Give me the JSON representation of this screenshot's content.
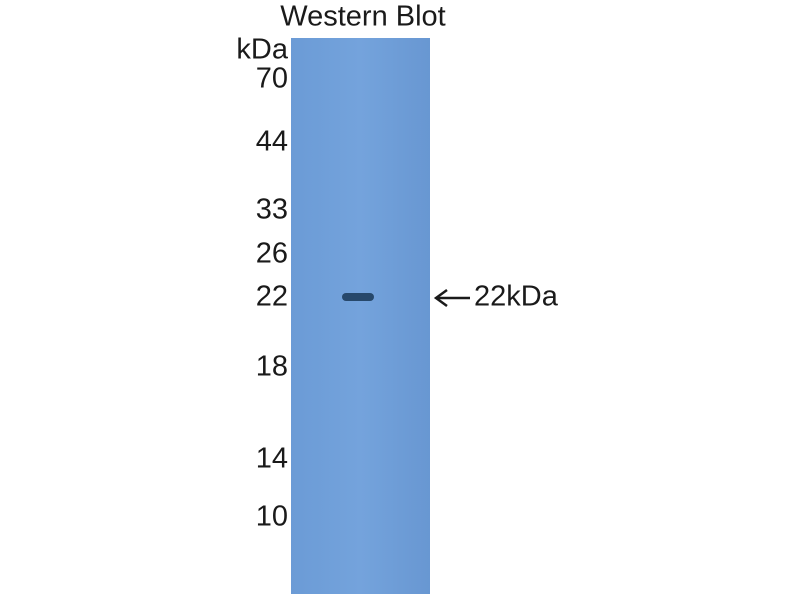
{
  "header": {
    "title": "Western Blot"
  },
  "axis": {
    "unit": "kDa",
    "markers": [
      70,
      44,
      33,
      26,
      22,
      18,
      14,
      10
    ]
  },
  "band": {
    "label": "22kDa"
  }
}
